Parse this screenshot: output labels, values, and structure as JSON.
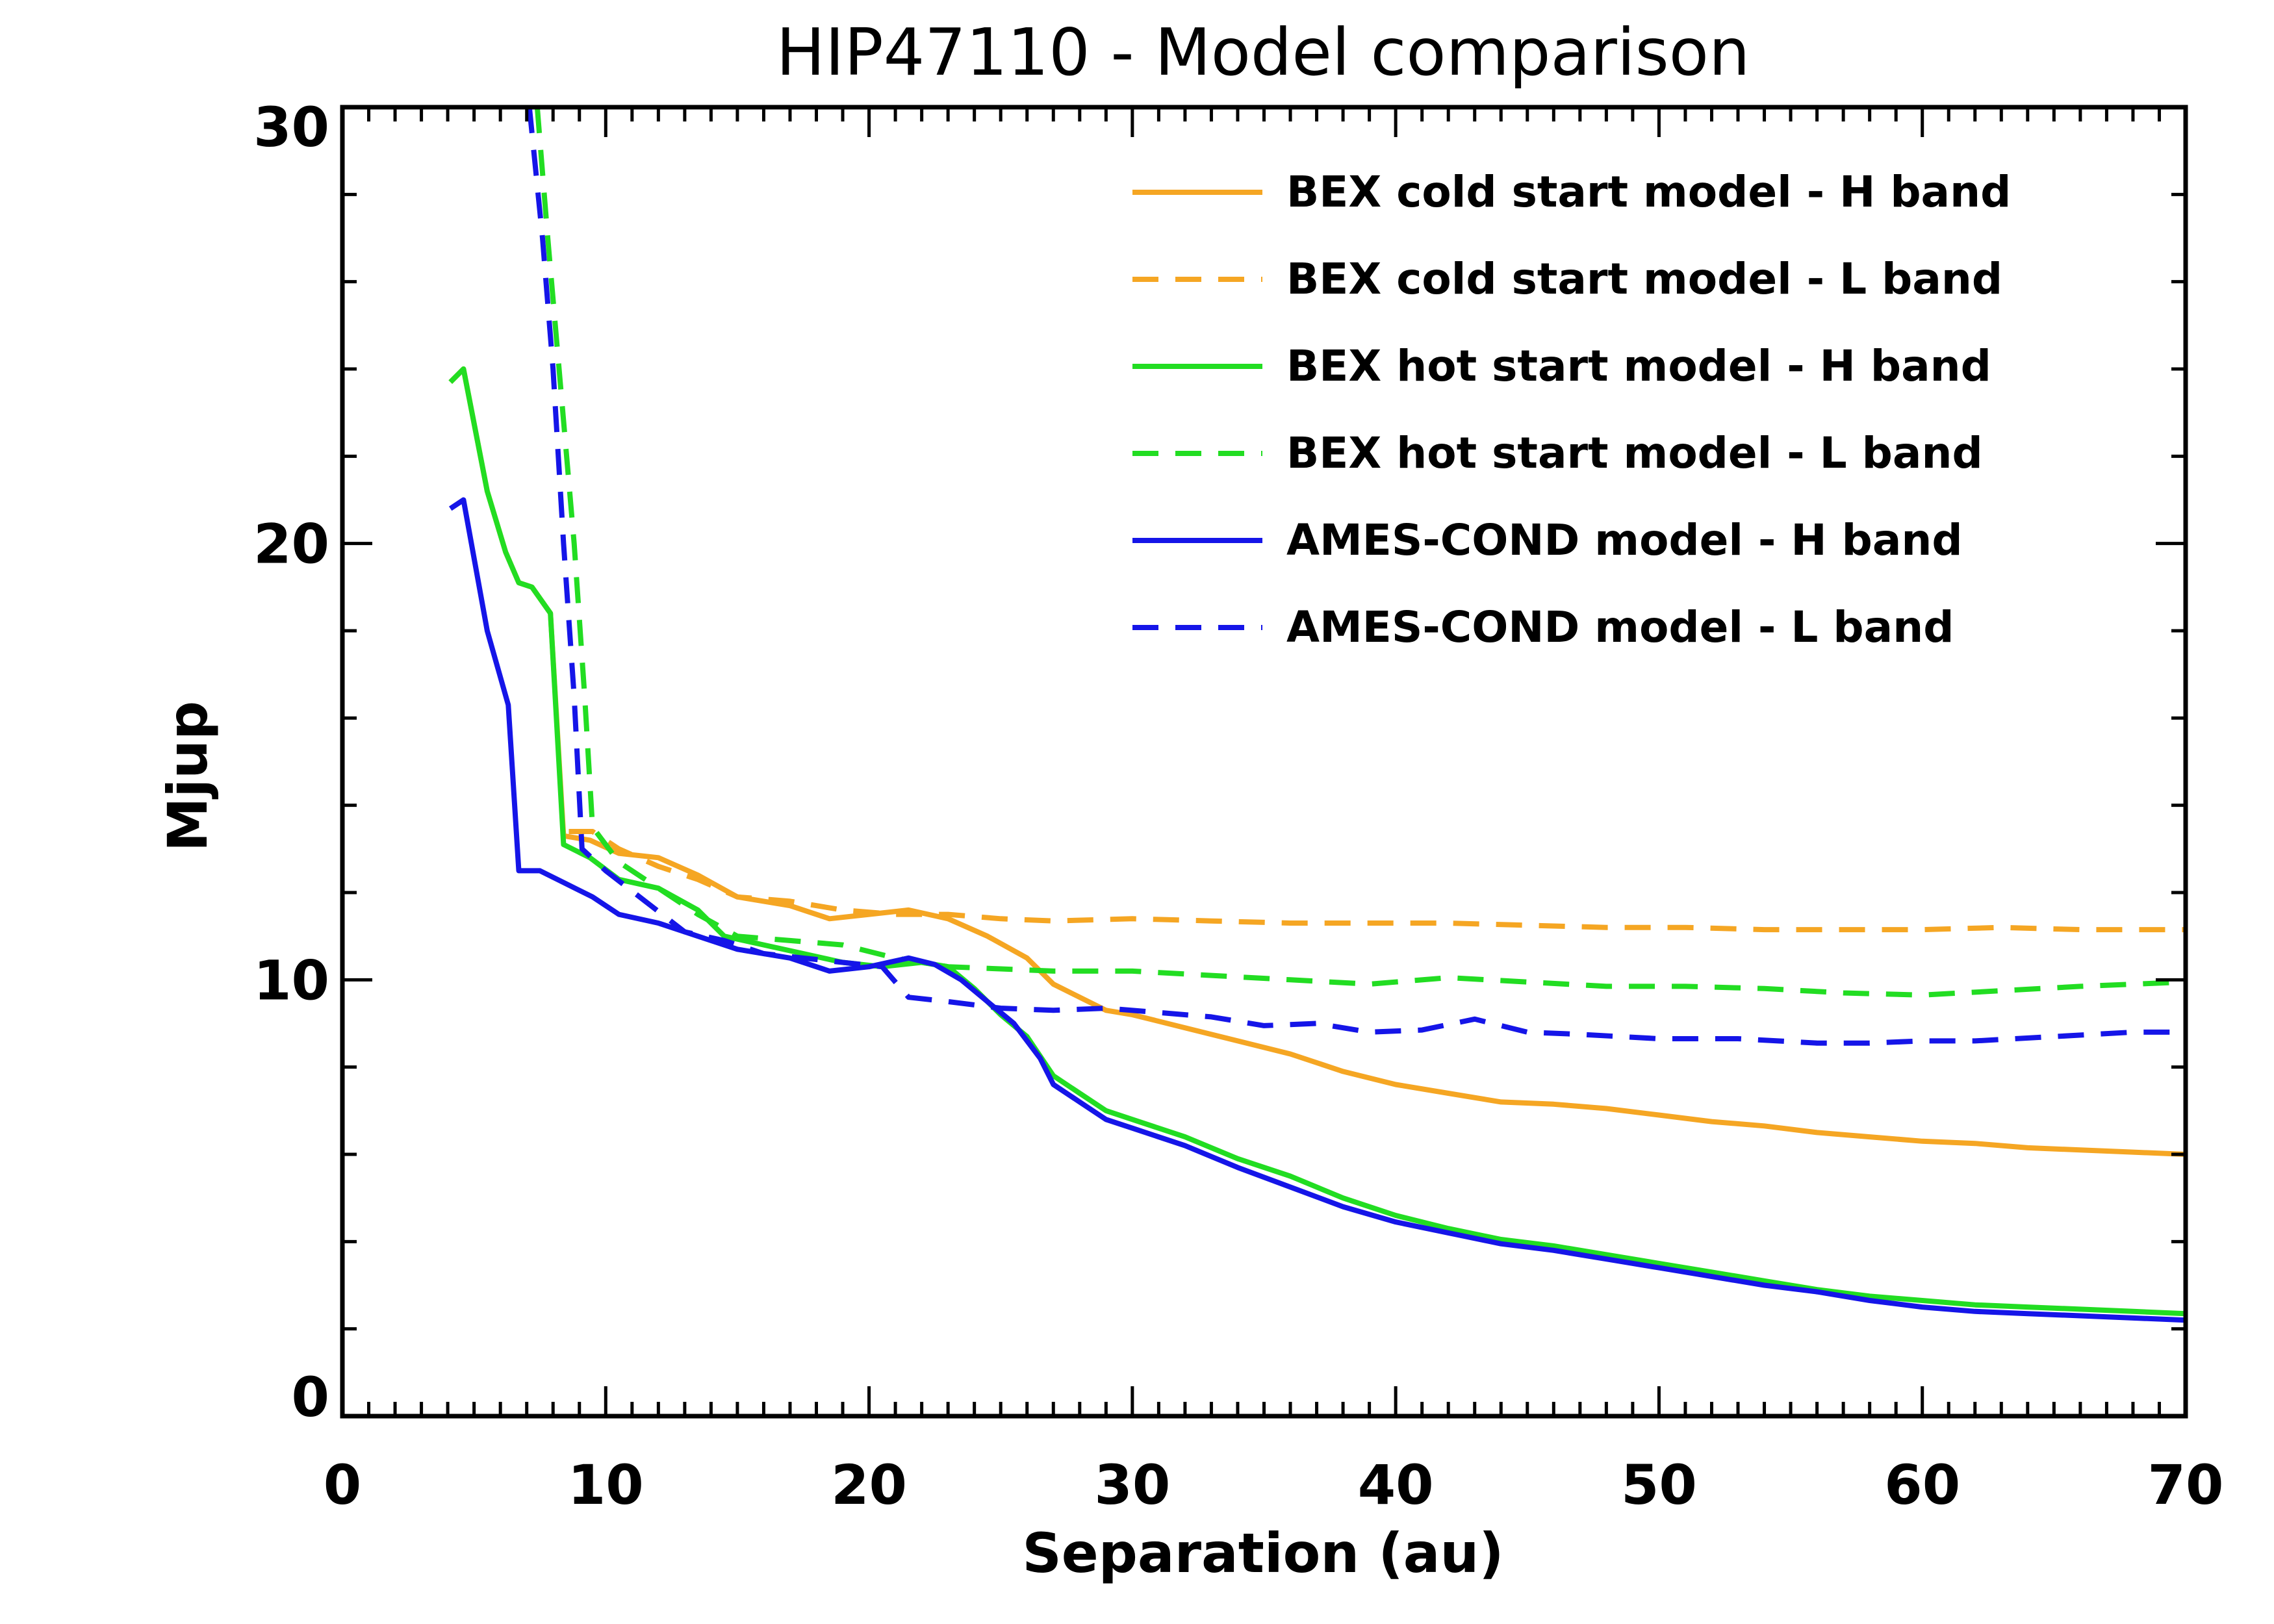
{
  "chart_data": {
    "type": "line",
    "title": "HIP47110 - Model comparison",
    "xlabel": "Separation (au)",
    "ylabel": "Mjup",
    "xlim": [
      0,
      70
    ],
    "ylim": [
      0,
      30
    ],
    "xticks": [
      0,
      10,
      20,
      30,
      40,
      50,
      60,
      70
    ],
    "yticks": [
      0,
      10,
      20,
      30
    ],
    "grid": false,
    "legend_position": "top-right",
    "series": [
      {
        "name": "BEX cold start model - H band",
        "color": "#F5A623",
        "dash": "solid",
        "points": [
          [
            4.1,
            23.7
          ],
          [
            4.6,
            24.0
          ],
          [
            5.5,
            21.2
          ],
          [
            6.2,
            19.8
          ],
          [
            6.7,
            19.1
          ],
          [
            7.2,
            19.0
          ],
          [
            7.9,
            18.4
          ],
          [
            8.4,
            13.3
          ],
          [
            9.4,
            13.2
          ],
          [
            10.5,
            12.9
          ],
          [
            12.0,
            12.8
          ],
          [
            13.5,
            12.4
          ],
          [
            15.0,
            11.9
          ],
          [
            17.0,
            11.7
          ],
          [
            18.5,
            11.4
          ],
          [
            20.0,
            11.5
          ],
          [
            21.5,
            11.6
          ],
          [
            23.0,
            11.4
          ],
          [
            24.5,
            11.0
          ],
          [
            26.0,
            10.5
          ],
          [
            27.0,
            9.9
          ],
          [
            28.0,
            9.6
          ],
          [
            29.0,
            9.3
          ],
          [
            30.0,
            9.2
          ],
          [
            32.0,
            8.9
          ],
          [
            34.0,
            8.6
          ],
          [
            36.0,
            8.3
          ],
          [
            38.0,
            7.9
          ],
          [
            40.0,
            7.6
          ],
          [
            42.0,
            7.4
          ],
          [
            44.0,
            7.2
          ],
          [
            46.0,
            7.15
          ],
          [
            48.0,
            7.05
          ],
          [
            50.0,
            6.9
          ],
          [
            52.0,
            6.75
          ],
          [
            54.0,
            6.65
          ],
          [
            56.0,
            6.5
          ],
          [
            58.0,
            6.4
          ],
          [
            60.0,
            6.3
          ],
          [
            62.0,
            6.25
          ],
          [
            64.0,
            6.15
          ],
          [
            66.0,
            6.1
          ],
          [
            68.0,
            6.05
          ],
          [
            70.0,
            6.0
          ]
        ]
      },
      {
        "name": "BEX cold start model - L band",
        "color": "#F5A623",
        "dash": "dashed",
        "points": [
          [
            8.6,
            13.4
          ],
          [
            9.5,
            13.4
          ],
          [
            10.5,
            13.0
          ],
          [
            12.0,
            12.6
          ],
          [
            13.5,
            12.3
          ],
          [
            15.0,
            11.9
          ],
          [
            17.0,
            11.8
          ],
          [
            19.0,
            11.6
          ],
          [
            21.0,
            11.5
          ],
          [
            23.0,
            11.5
          ],
          [
            25.0,
            11.4
          ],
          [
            27.0,
            11.35
          ],
          [
            30.0,
            11.4
          ],
          [
            33.0,
            11.35
          ],
          [
            36.0,
            11.3
          ],
          [
            39.0,
            11.3
          ],
          [
            42.0,
            11.3
          ],
          [
            45.0,
            11.25
          ],
          [
            48.0,
            11.2
          ],
          [
            51.0,
            11.2
          ],
          [
            54.0,
            11.15
          ],
          [
            57.0,
            11.15
          ],
          [
            60.0,
            11.15
          ],
          [
            63.0,
            11.2
          ],
          [
            66.0,
            11.15
          ],
          [
            70.0,
            11.15
          ]
        ]
      },
      {
        "name": "BEX hot start model - H band",
        "color": "#22DD22",
        "dash": "solid",
        "points": [
          [
            4.1,
            23.7
          ],
          [
            4.6,
            24.0
          ],
          [
            5.5,
            21.2
          ],
          [
            6.2,
            19.8
          ],
          [
            6.7,
            19.1
          ],
          [
            7.2,
            19.0
          ],
          [
            7.9,
            18.4
          ],
          [
            8.4,
            13.1
          ],
          [
            9.4,
            12.8
          ],
          [
            10.5,
            12.3
          ],
          [
            12.0,
            12.1
          ],
          [
            13.5,
            11.6
          ],
          [
            14.5,
            11.0
          ],
          [
            16.0,
            10.8
          ],
          [
            17.5,
            10.6
          ],
          [
            19.0,
            10.4
          ],
          [
            20.5,
            10.3
          ],
          [
            22.0,
            10.4
          ],
          [
            23.0,
            10.3
          ],
          [
            24.0,
            9.8
          ],
          [
            25.0,
            9.2
          ],
          [
            26.0,
            8.7
          ],
          [
            27.0,
            7.8
          ],
          [
            28.0,
            7.4
          ],
          [
            29.0,
            7.0
          ],
          [
            30.0,
            6.8
          ],
          [
            32.0,
            6.4
          ],
          [
            34.0,
            5.9
          ],
          [
            36.0,
            5.5
          ],
          [
            38.0,
            5.0
          ],
          [
            40.0,
            4.6
          ],
          [
            42.0,
            4.3
          ],
          [
            44.0,
            4.05
          ],
          [
            46.0,
            3.9
          ],
          [
            48.0,
            3.7
          ],
          [
            50.0,
            3.5
          ],
          [
            52.0,
            3.3
          ],
          [
            54.0,
            3.1
          ],
          [
            56.0,
            2.9
          ],
          [
            58.0,
            2.75
          ],
          [
            60.0,
            2.65
          ],
          [
            62.0,
            2.55
          ],
          [
            64.0,
            2.5
          ],
          [
            66.0,
            2.45
          ],
          [
            68.0,
            2.4
          ],
          [
            70.0,
            2.35
          ]
        ]
      },
      {
        "name": "BEX hot start model - L band",
        "color": "#22DD22",
        "dash": "dashed",
        "points": [
          [
            7.4,
            30.0
          ],
          [
            7.8,
            27.0
          ],
          [
            8.3,
            23.5
          ],
          [
            8.8,
            20.0
          ],
          [
            9.2,
            16.5
          ],
          [
            9.5,
            13.5
          ],
          [
            10.5,
            12.7
          ],
          [
            12.0,
            12.1
          ],
          [
            13.5,
            11.5
          ],
          [
            15.0,
            11.0
          ],
          [
            17.0,
            10.9
          ],
          [
            19.0,
            10.8
          ],
          [
            21.0,
            10.5
          ],
          [
            23.0,
            10.3
          ],
          [
            25.0,
            10.25
          ],
          [
            27.0,
            10.2
          ],
          [
            30.0,
            10.2
          ],
          [
            33.0,
            10.1
          ],
          [
            36.0,
            10.0
          ],
          [
            39.0,
            9.9
          ],
          [
            42.0,
            10.05
          ],
          [
            45.0,
            9.95
          ],
          [
            48.0,
            9.85
          ],
          [
            51.0,
            9.85
          ],
          [
            54.0,
            9.8
          ],
          [
            57.0,
            9.7
          ],
          [
            60.0,
            9.65
          ],
          [
            63.0,
            9.75
          ],
          [
            66.0,
            9.85
          ],
          [
            70.0,
            9.95
          ]
        ]
      },
      {
        "name": "AMES-COND model - H band",
        "color": "#1515E8",
        "dash": "solid",
        "points": [
          [
            4.1,
            20.8
          ],
          [
            4.6,
            21.0
          ],
          [
            5.5,
            18.0
          ],
          [
            6.3,
            16.3
          ],
          [
            6.7,
            12.5
          ],
          [
            7.5,
            12.5
          ],
          [
            8.5,
            12.2
          ],
          [
            9.5,
            11.9
          ],
          [
            10.5,
            11.5
          ],
          [
            12.0,
            11.3
          ],
          [
            13.5,
            11.0
          ],
          [
            15.0,
            10.7
          ],
          [
            17.0,
            10.5
          ],
          [
            18.5,
            10.2
          ],
          [
            20.0,
            10.3
          ],
          [
            21.5,
            10.5
          ],
          [
            22.5,
            10.35
          ],
          [
            23.5,
            10.0
          ],
          [
            24.5,
            9.5
          ],
          [
            25.5,
            9.0
          ],
          [
            26.5,
            8.2
          ],
          [
            27.0,
            7.6
          ],
          [
            28.0,
            7.2
          ],
          [
            29.0,
            6.8
          ],
          [
            30.0,
            6.6
          ],
          [
            32.0,
            6.2
          ],
          [
            34.0,
            5.7
          ],
          [
            36.0,
            5.25
          ],
          [
            38.0,
            4.8
          ],
          [
            40.0,
            4.45
          ],
          [
            42.0,
            4.2
          ],
          [
            44.0,
            3.95
          ],
          [
            46.0,
            3.8
          ],
          [
            48.0,
            3.6
          ],
          [
            50.0,
            3.4
          ],
          [
            52.0,
            3.2
          ],
          [
            54.0,
            3.0
          ],
          [
            56.0,
            2.85
          ],
          [
            58.0,
            2.65
          ],
          [
            60.0,
            2.5
          ],
          [
            62.0,
            2.4
          ],
          [
            64.0,
            2.35
          ],
          [
            66.0,
            2.3
          ],
          [
            68.0,
            2.25
          ],
          [
            70.0,
            2.2
          ]
        ]
      },
      {
        "name": "AMES-COND model - L band",
        "color": "#1515E8",
        "dash": "dashed",
        "points": [
          [
            7.1,
            30.0
          ],
          [
            7.6,
            27.0
          ],
          [
            8.0,
            24.0
          ],
          [
            8.4,
            20.0
          ],
          [
            8.8,
            16.5
          ],
          [
            9.1,
            13.0
          ],
          [
            10.0,
            12.5
          ],
          [
            11.5,
            11.8
          ],
          [
            13.0,
            11.1
          ],
          [
            14.5,
            10.9
          ],
          [
            16.0,
            10.6
          ],
          [
            17.5,
            10.5
          ],
          [
            19.0,
            10.4
          ],
          [
            20.5,
            10.3
          ],
          [
            21.5,
            9.6
          ],
          [
            23.0,
            9.5
          ],
          [
            25.0,
            9.35
          ],
          [
            27.0,
            9.3
          ],
          [
            29.0,
            9.35
          ],
          [
            31.0,
            9.25
          ],
          [
            33.0,
            9.15
          ],
          [
            35.0,
            8.95
          ],
          [
            37.0,
            9.0
          ],
          [
            39.0,
            8.8
          ],
          [
            41.0,
            8.85
          ],
          [
            43.0,
            9.1
          ],
          [
            45.0,
            8.8
          ],
          [
            47.0,
            8.75
          ],
          [
            50.0,
            8.65
          ],
          [
            53.0,
            8.65
          ],
          [
            56.0,
            8.55
          ],
          [
            58.0,
            8.55
          ],
          [
            60.0,
            8.6
          ],
          [
            62.0,
            8.6
          ],
          [
            65.0,
            8.7
          ],
          [
            68.0,
            8.8
          ],
          [
            70.0,
            8.8
          ]
        ]
      }
    ]
  }
}
